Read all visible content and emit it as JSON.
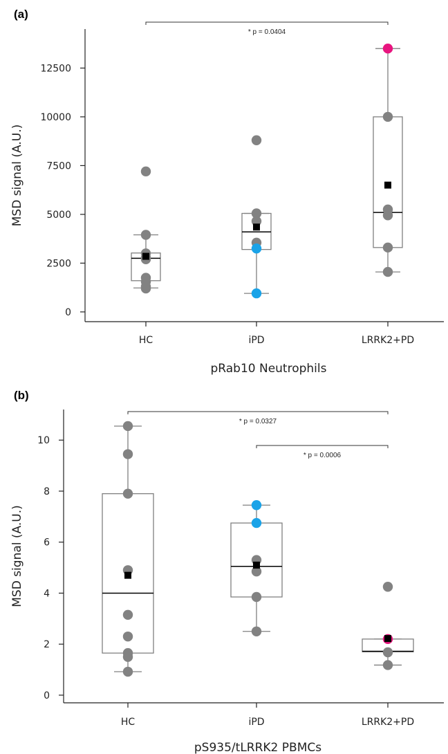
{
  "chart_data": [
    {
      "panel": "(a)",
      "type": "box",
      "xlabel": "pRab10 Neutrophils",
      "ylabel": "MSD signal (A.U.)",
      "ylim": [
        -500,
        14500
      ],
      "yticks": [
        0,
        2500,
        5000,
        7500,
        10000,
        12500
      ],
      "categories": [
        "HC",
        "iPD",
        "LRRK2+PD"
      ],
      "groups": [
        {
          "name": "HC",
          "box": {
            "q1": 1600,
            "median": 2750,
            "q3": 3020,
            "whisker_low": 1230,
            "whisker_high": 3950
          },
          "mean": 2850,
          "points": [
            {
              "y": 7200,
              "color": "gray"
            },
            {
              "y": 3950,
              "color": "gray"
            },
            {
              "y": 3000,
              "color": "gray"
            },
            {
              "y": 2800,
              "color": "gray"
            },
            {
              "y": 2700,
              "color": "gray"
            },
            {
              "y": 1750,
              "color": "gray"
            },
            {
              "y": 1550,
              "color": "gray"
            },
            {
              "y": 1300,
              "color": "gray"
            },
            {
              "y": 1200,
              "color": "gray"
            }
          ]
        },
        {
          "name": "iPD",
          "box": {
            "q1": 3200,
            "median": 4100,
            "q3": 5050,
            "whisker_low": 950,
            "whisker_high": 5050
          },
          "mean": 4350,
          "points": [
            {
              "y": 8800,
              "color": "gray"
            },
            {
              "y": 5050,
              "color": "gray"
            },
            {
              "y": 4650,
              "color": "gray"
            },
            {
              "y": 3550,
              "color": "gray"
            },
            {
              "y": 3250,
              "color": "blue"
            },
            {
              "y": 950,
              "color": "blue"
            }
          ]
        },
        {
          "name": "LRRK2+PD",
          "box": {
            "q1": 3300,
            "median": 5100,
            "q3": 10000,
            "whisker_low": 2050,
            "whisker_high": 13500
          },
          "mean": 6500,
          "points": [
            {
              "y": 13500,
              "color": "magenta"
            },
            {
              "y": 10000,
              "color": "gray"
            },
            {
              "y": 5250,
              "color": "gray"
            },
            {
              "y": 4950,
              "color": "gray"
            },
            {
              "y": 3300,
              "color": "gray"
            },
            {
              "y": 2050,
              "color": "gray"
            }
          ]
        }
      ],
      "significance": [
        {
          "from": "HC",
          "to": "LRRK2+PD",
          "label": "* p = 0.0404"
        }
      ]
    },
    {
      "panel": "(b)",
      "type": "box",
      "xlabel": "pS935/tLRRK2 PBMCs",
      "ylabel": "MSD signal (A.U.)",
      "ylim": [
        -0.3,
        11.2
      ],
      "yticks": [
        0,
        2,
        4,
        6,
        8,
        10
      ],
      "categories": [
        "HC",
        "iPD",
        "LRRK2+PD"
      ],
      "groups": [
        {
          "name": "HC",
          "box": {
            "q1": 1.65,
            "median": 4.0,
            "q3": 7.9,
            "whisker_low": 0.92,
            "whisker_high": 10.55
          },
          "mean": 4.7,
          "points": [
            {
              "y": 10.55,
              "color": "gray"
            },
            {
              "y": 9.45,
              "color": "gray"
            },
            {
              "y": 7.9,
              "color": "gray"
            },
            {
              "y": 4.9,
              "color": "gray"
            },
            {
              "y": 3.15,
              "color": "gray"
            },
            {
              "y": 2.3,
              "color": "gray"
            },
            {
              "y": 1.65,
              "color": "gray"
            },
            {
              "y": 1.5,
              "color": "gray"
            },
            {
              "y": 0.92,
              "color": "gray"
            }
          ]
        },
        {
          "name": "iPD",
          "box": {
            "q1": 3.85,
            "median": 5.05,
            "q3": 6.75,
            "whisker_low": 2.5,
            "whisker_high": 7.45
          },
          "mean": 5.1,
          "points": [
            {
              "y": 7.45,
              "color": "blue"
            },
            {
              "y": 6.75,
              "color": "blue"
            },
            {
              "y": 5.3,
              "color": "gray"
            },
            {
              "y": 4.85,
              "color": "gray"
            },
            {
              "y": 3.85,
              "color": "gray"
            },
            {
              "y": 2.5,
              "color": "gray"
            }
          ]
        },
        {
          "name": "LRRK2+PD",
          "box": {
            "q1": 1.7,
            "median": 1.72,
            "q3": 2.2,
            "whisker_low": 1.18,
            "whisker_high": 2.2
          },
          "mean": 2.22,
          "points": [
            {
              "y": 4.25,
              "color": "gray"
            },
            {
              "y": 2.2,
              "color": "magenta"
            },
            {
              "y": 1.68,
              "color": "gray"
            },
            {
              "y": 1.18,
              "color": "gray"
            }
          ]
        }
      ],
      "significance": [
        {
          "from": "HC",
          "to": "LRRK2+PD",
          "label": "* p = 0.0327"
        },
        {
          "from": "iPD",
          "to": "LRRK2+PD",
          "label": "* p = 0.0006"
        }
      ]
    }
  ],
  "colors": {
    "gray": "#828282",
    "blue": "#1aa3e8",
    "magenta": "#e8157f",
    "mean": "#000000",
    "box": "#808080",
    "axis": "#222222"
  }
}
